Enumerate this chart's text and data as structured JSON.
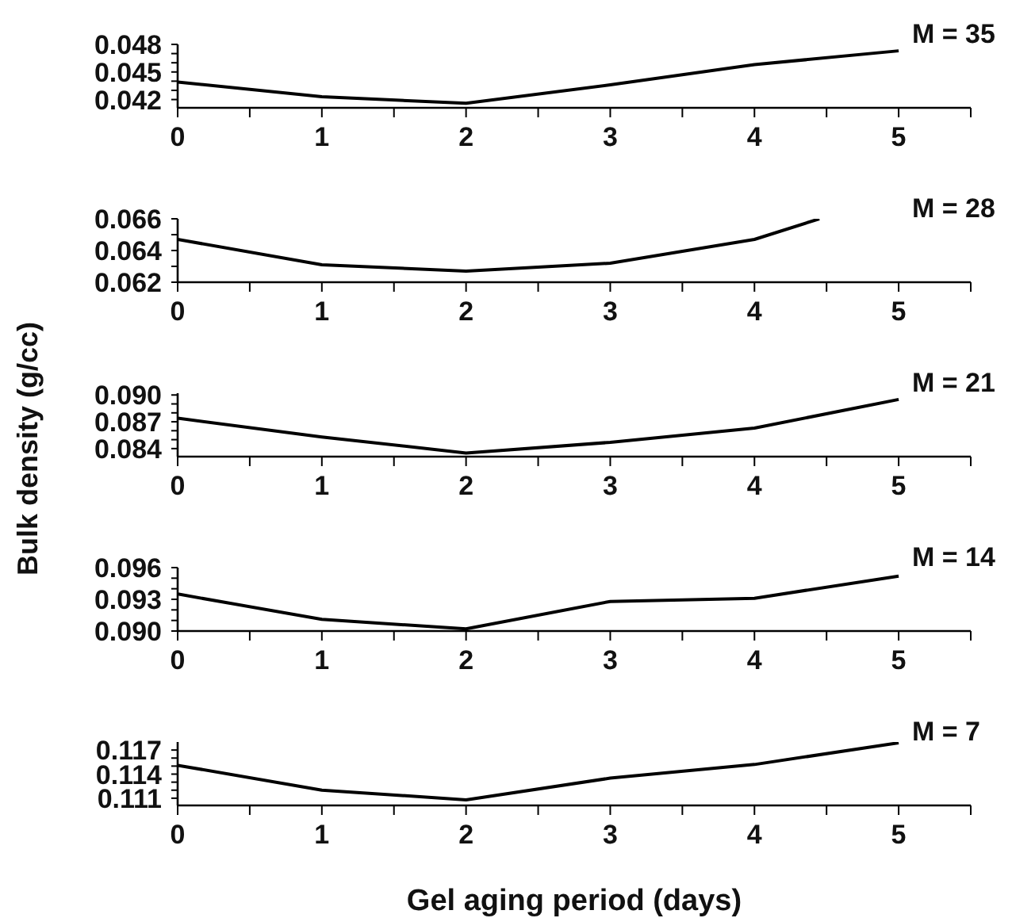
{
  "chart_data": [
    {
      "type": "line",
      "x": [
        0,
        1,
        2,
        3,
        4,
        5
      ],
      "series": [
        {
          "color": "#000000",
          "values": [
            0.0439,
            0.0423,
            0.0416,
            0.0436,
            0.0458,
            0.0473
          ]
        }
      ],
      "xlim": [
        0,
        5.5
      ],
      "xticks": [
        0,
        {
          "value": 0.5,
          "label": null
        },
        1,
        {
          "value": 1.5,
          "label": null
        },
        2,
        {
          "value": 2.5,
          "label": null
        },
        3,
        {
          "value": 3.5,
          "label": null
        },
        4,
        {
          "value": 4.5,
          "label": null
        },
        5,
        {
          "value": 5.5,
          "label": null
        }
      ],
      "ylim": [
        0.0411,
        0.048
      ],
      "yticks": [
        {
          "value": 0.042,
          "label": "0.042"
        },
        {
          "value": 0.043,
          "label": null
        },
        {
          "value": 0.044,
          "label": null
        },
        {
          "value": 0.045,
          "label": "0.045"
        },
        {
          "value": 0.046,
          "label": null
        },
        {
          "value": 0.047,
          "label": null
        },
        {
          "value": 0.048,
          "label": "0.048"
        }
      ],
      "annotations": [
        "M = 35"
      ]
    },
    {
      "type": "line",
      "x": [
        0,
        1,
        2,
        3,
        4,
        4.45
      ],
      "series": [
        {
          "color": "#000000",
          "values": [
            0.0647,
            0.0631,
            0.0627,
            0.0632,
            0.0647,
            0.066
          ]
        }
      ],
      "xlim": [
        0,
        5.5
      ],
      "xticks": [
        0,
        {
          "value": 0.5,
          "label": null
        },
        1,
        {
          "value": 1.5,
          "label": null
        },
        2,
        {
          "value": 2.5,
          "label": null
        },
        3,
        {
          "value": 3.5,
          "label": null
        },
        4,
        {
          "value": 4.5,
          "label": null
        },
        5,
        {
          "value": 5.5,
          "label": null
        }
      ],
      "ylim": [
        0.062,
        0.066
      ],
      "yticks": [
        {
          "value": 0.062,
          "label": "0.062"
        },
        {
          "value": 0.063,
          "label": null
        },
        {
          "value": 0.064,
          "label": "0.064"
        },
        {
          "value": 0.065,
          "label": null
        },
        {
          "value": 0.066,
          "label": "0.066"
        }
      ],
      "annotations": [
        "M = 28"
      ]
    },
    {
      "type": "line",
      "x": [
        0,
        1,
        2,
        3,
        4,
        5
      ],
      "series": [
        {
          "color": "#000000",
          "values": [
            0.0874,
            0.0853,
            0.0835,
            0.0847,
            0.0863,
            0.0895
          ]
        }
      ],
      "xlim": [
        0,
        5.5
      ],
      "xticks": [
        0,
        {
          "value": 0.5,
          "label": null
        },
        1,
        {
          "value": 1.5,
          "label": null
        },
        2,
        {
          "value": 2.5,
          "label": null
        },
        3,
        {
          "value": 3.5,
          "label": null
        },
        4,
        {
          "value": 4.5,
          "label": null
        },
        5,
        {
          "value": 5.5,
          "label": null
        }
      ],
      "ylim": [
        0.0831,
        0.0902
      ],
      "yticks": [
        {
          "value": 0.084,
          "label": "0.084"
        },
        {
          "value": 0.085,
          "label": null
        },
        {
          "value": 0.086,
          "label": null
        },
        {
          "value": 0.087,
          "label": "0.087"
        },
        {
          "value": 0.088,
          "label": null
        },
        {
          "value": 0.089,
          "label": null
        },
        {
          "value": 0.09,
          "label": "0.090"
        }
      ],
      "ylabel": "Bulk density (g/cc)",
      "annotations": [
        "M = 21"
      ]
    },
    {
      "type": "line",
      "x": [
        0,
        1,
        2,
        3,
        4,
        5
      ],
      "series": [
        {
          "color": "#000000",
          "values": [
            0.0935,
            0.0911,
            0.0902,
            0.0928,
            0.0931,
            0.0952
          ]
        }
      ],
      "xlim": [
        0,
        5.5
      ],
      "xticks": [
        0,
        {
          "value": 0.5,
          "label": null
        },
        1,
        {
          "value": 1.5,
          "label": null
        },
        2,
        {
          "value": 2.5,
          "label": null
        },
        3,
        {
          "value": 3.5,
          "label": null
        },
        4,
        {
          "value": 4.5,
          "label": null
        },
        5,
        {
          "value": 5.5,
          "label": null
        }
      ],
      "ylim": [
        0.09,
        0.096
      ],
      "yticks": [
        {
          "value": 0.09,
          "label": "0.090"
        },
        {
          "value": 0.091,
          "label": null
        },
        {
          "value": 0.092,
          "label": null
        },
        {
          "value": 0.093,
          "label": "0.093"
        },
        {
          "value": 0.094,
          "label": null
        },
        {
          "value": 0.095,
          "label": null
        },
        {
          "value": 0.096,
          "label": "0.096"
        }
      ],
      "annotations": [
        "M = 14"
      ]
    },
    {
      "type": "line",
      "x": [
        0,
        1,
        2,
        3,
        4,
        5
      ],
      "series": [
        {
          "color": "#000000",
          "values": [
            0.1151,
            0.112,
            0.1108,
            0.1135,
            0.1152,
            0.1179
          ]
        }
      ],
      "xlim": [
        0,
        5.5
      ],
      "xticks": [
        0,
        {
          "value": 0.5,
          "label": null
        },
        1,
        {
          "value": 1.5,
          "label": null
        },
        2,
        {
          "value": 2.5,
          "label": null
        },
        3,
        {
          "value": 3.5,
          "label": null
        },
        4,
        {
          "value": 4.5,
          "label": null
        },
        5,
        {
          "value": 5.5,
          "label": null
        }
      ],
      "ylim": [
        0.1101,
        0.118
      ],
      "yticks": [
        {
          "value": 0.111,
          "label": "0.111"
        },
        {
          "value": 0.112,
          "label": null
        },
        {
          "value": 0.113,
          "label": null
        },
        {
          "value": 0.114,
          "label": "0.114"
        },
        {
          "value": 0.115,
          "label": null
        },
        {
          "value": 0.116,
          "label": null
        },
        {
          "value": 0.117,
          "label": "0.117"
        }
      ],
      "xlabel": "Gel aging period (days)",
      "annotations": [
        "M = 7"
      ]
    }
  ]
}
